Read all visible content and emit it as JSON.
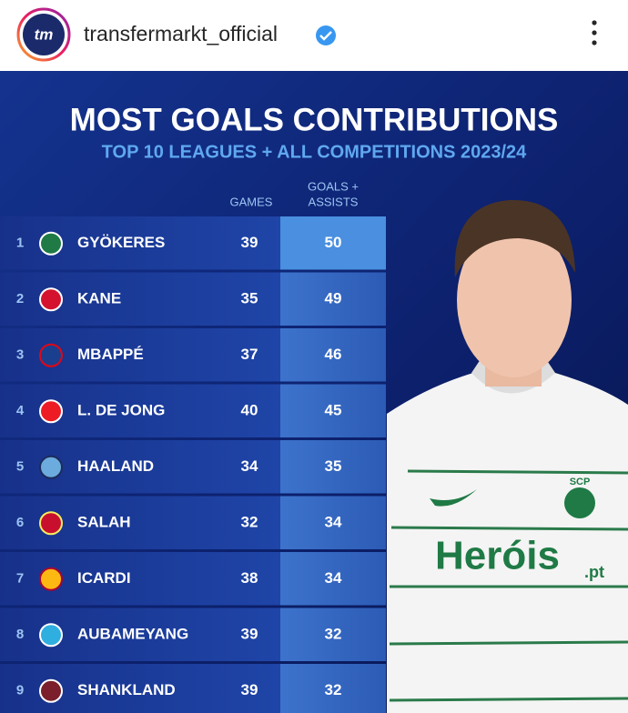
{
  "header": {
    "avatar_text": "tm",
    "username": "transfermarkt_official"
  },
  "post": {
    "title": "MOST GOALS CONTRIBUTIONS",
    "subtitle": "TOP 10 LEAGUES + ALL COMPETITIONS 2023/24",
    "jersey": {
      "crest": "SCP",
      "sponsor": "Heróis",
      "sponsor_suffix": ".pt"
    }
  },
  "table": {
    "games_header": "GAMES",
    "contrib_header_lines": [
      "GOALS +",
      "ASSISTS"
    ],
    "rows": [
      [
        "1",
        "GYÖKERES",
        39,
        50
      ],
      [
        "2",
        "KANE",
        35,
        49
      ],
      [
        "3",
        "MBAPPÉ",
        37,
        46
      ],
      [
        "4",
        "L. DE JONG",
        40,
        45
      ],
      [
        "5",
        "HAALAND",
        34,
        35
      ],
      [
        "6",
        "SALAH",
        32,
        34
      ],
      [
        "7",
        "ICARDI",
        38,
        34
      ],
      [
        "8",
        "AUBAMEYANG",
        39,
        32
      ],
      [
        "9",
        "SHANKLAND",
        39,
        32
      ]
    ]
  }
}
